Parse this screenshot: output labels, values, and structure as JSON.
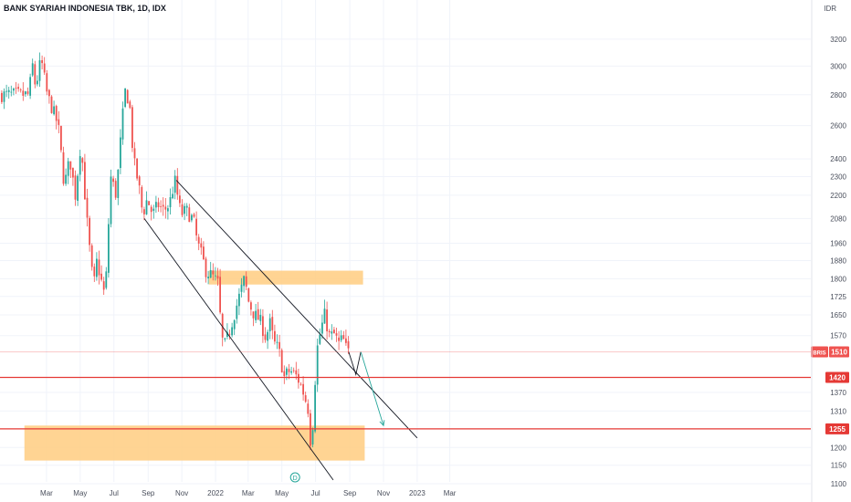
{
  "chart_title": "BANK SYARIAH INDONESIA TBK, 1D, IDX",
  "chart_data": {
    "type": "candlestick",
    "title": "BANK SYARIAH INDONESIA TBK, 1D, IDX",
    "currency": "IDR",
    "y_scale": "log",
    "ylim": [
      1100,
      3350
    ],
    "y_ticks": [
      3200,
      3000,
      2800,
      2600,
      2400,
      2300,
      2200,
      2080,
      1960,
      1880,
      1800,
      1725,
      1650,
      1570,
      1370,
      1310,
      1200,
      1150,
      1100
    ],
    "x_labels": [
      "Mar",
      "May",
      "Jul",
      "Sep",
      "Nov",
      "2022",
      "Mar",
      "May",
      "Jul",
      "Sep",
      "Nov",
      "2023",
      "Mar"
    ],
    "price_path": [
      [
        "2021-02-01",
        2800
      ],
      [
        "2021-02-05",
        3050
      ],
      [
        "2021-02-12",
        2850
      ],
      [
        "2021-02-22",
        3050
      ],
      [
        "2021-03-05",
        2800
      ],
      [
        "2021-03-15",
        2700
      ],
      [
        "2021-03-25",
        2600
      ],
      [
        "2021-04-05",
        2250
      ],
      [
        "2021-04-15",
        2400
      ],
      [
        "2021-04-25",
        2200
      ],
      [
        "2021-05-05",
        2500
      ],
      [
        "2021-05-15",
        2100
      ],
      [
        "2021-05-22",
        1900
      ],
      [
        "2021-05-28",
        1760
      ],
      [
        "2021-06-03",
        1880
      ],
      [
        "2021-06-10",
        1800
      ],
      [
        "2021-06-18",
        1720
      ],
      [
        "2021-06-28",
        2300
      ],
      [
        "2021-07-08",
        2200
      ],
      [
        "2021-07-18",
        2600
      ],
      [
        "2021-07-25",
        2850
      ],
      [
        "2021-08-02",
        2700
      ],
      [
        "2021-08-08",
        2400
      ],
      [
        "2021-08-18",
        2250
      ],
      [
        "2021-08-25",
        2100
      ],
      [
        "2021-09-02",
        2180
      ],
      [
        "2021-09-12",
        2100
      ],
      [
        "2021-09-22",
        2150
      ],
      [
        "2021-10-02",
        2120
      ],
      [
        "2021-10-12",
        2150
      ],
      [
        "2021-10-22",
        2280
      ],
      [
        "2021-11-02",
        2100
      ],
      [
        "2021-11-12",
        2120
      ],
      [
        "2021-11-25",
        2070
      ],
      [
        "2021-12-02",
        1960
      ],
      [
        "2021-12-10",
        1900
      ],
      [
        "2021-12-18",
        1830
      ],
      [
        "2021-12-25",
        1820
      ],
      [
        "2022-01-02",
        1800
      ],
      [
        "2022-01-08",
        1780
      ],
      [
        "2022-01-13",
        1620
      ],
      [
        "2022-01-18",
        1520
      ],
      [
        "2022-01-25",
        1560
      ],
      [
        "2022-02-05",
        1640
      ],
      [
        "2022-02-15",
        1720
      ],
      [
        "2022-02-25",
        1800
      ],
      [
        "2022-03-05",
        1700
      ],
      [
        "2022-03-15",
        1650
      ],
      [
        "2022-03-25",
        1630
      ],
      [
        "2022-04-05",
        1560
      ],
      [
        "2022-04-12",
        1620
      ],
      [
        "2022-04-20",
        1540
      ],
      [
        "2022-04-28",
        1520
      ],
      [
        "2022-05-08",
        1420
      ],
      [
        "2022-05-15",
        1440
      ],
      [
        "2022-05-22",
        1440
      ],
      [
        "2022-06-01",
        1420
      ],
      [
        "2022-06-10",
        1380
      ],
      [
        "2022-06-20",
        1320
      ],
      [
        "2022-06-25",
        1210
      ],
      [
        "2022-06-30",
        1290
      ],
      [
        "2022-07-05",
        1500
      ],
      [
        "2022-07-10",
        1560
      ],
      [
        "2022-07-20",
        1650
      ],
      [
        "2022-07-30",
        1560
      ],
      [
        "2022-08-05",
        1580
      ],
      [
        "2022-08-15",
        1540
      ],
      [
        "2022-08-22",
        1560
      ],
      [
        "2022-08-30",
        1510
      ]
    ],
    "drawings": {
      "channel_upper": [
        [
          "2021-10-22",
          2280
        ],
        [
          "2023-01-01",
          1228
        ]
      ],
      "channel_lower": [
        [
          "2021-08-25",
          2080
        ],
        [
          "2022-08-02",
          1110
        ]
      ],
      "zigzag_projection": [
        [
          "2022-08-30",
          1510
        ],
        [
          "2022-09-12",
          1430
        ],
        [
          "2022-09-21",
          1510
        ],
        [
          "2022-11-01",
          1265
        ]
      ],
      "zones": [
        {
          "from": "2021-12-20",
          "to": "2022-09-25",
          "low": 1775,
          "high": 1835
        },
        {
          "from": "2021-01-20",
          "to": "2022-09-28",
          "low": 1163,
          "high": 1265
        }
      ],
      "levels": [
        {
          "label": "1420",
          "value": 1420
        },
        {
          "label": "1255",
          "value": 1255
        }
      ],
      "event_marker": {
        "label": "D",
        "date": "2022-05-25"
      }
    },
    "last_price": {
      "symbol": "BRIS",
      "value": "1510"
    }
  },
  "colors": {
    "up": "#26a69a",
    "down": "#ef5350",
    "level": "#e53935",
    "zone": "#ffcc80",
    "trendline": "#131722",
    "projection": "#26a69a",
    "grid": "#f0f3fa"
  }
}
